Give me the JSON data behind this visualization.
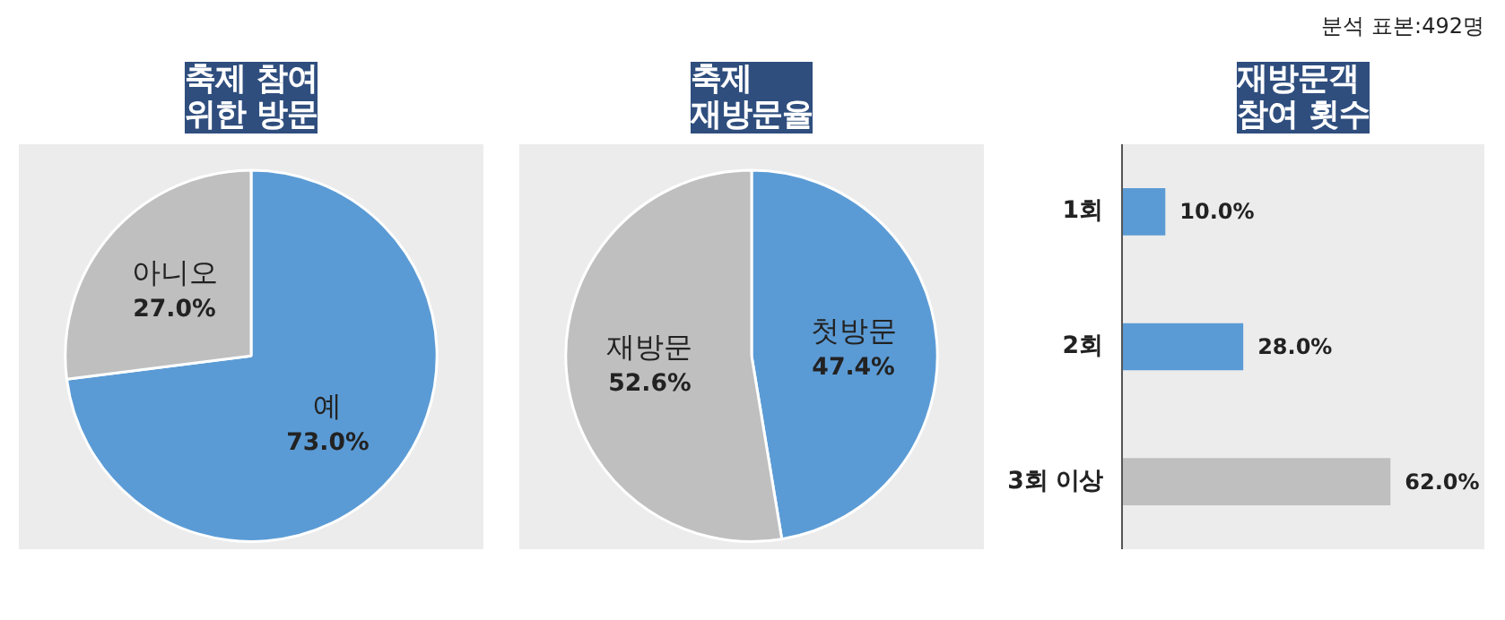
{
  "chart_data": [
    {
      "type": "pie",
      "title": "축제 참여\n위한 방문",
      "categories": [
        "예",
        "아니오"
      ],
      "values": [
        73.0,
        27.0
      ],
      "value_labels": [
        "73.0%",
        "27.0%"
      ],
      "colors": [
        "#5b9bd5",
        "#bfbfbf"
      ]
    },
    {
      "type": "pie",
      "title": "축제\n재방문율",
      "categories": [
        "첫방문",
        "재방문"
      ],
      "values": [
        47.4,
        52.6
      ],
      "value_labels": [
        "47.4%",
        "52.6%"
      ],
      "colors": [
        "#5b9bd5",
        "#bfbfbf"
      ]
    },
    {
      "type": "bar",
      "orientation": "horizontal",
      "title": "재방문객\n참여 횟수",
      "categories": [
        "1회",
        "2회",
        "3회 이상"
      ],
      "values": [
        10.0,
        28.0,
        62.0
      ],
      "value_labels": [
        "10.0%",
        "28.0%",
        "62.0%"
      ],
      "colors": [
        "#5b9bd5",
        "#5b9bd5",
        "#bfbfbf"
      ],
      "annotations": [
        "분석 표본:492명"
      ]
    }
  ]
}
